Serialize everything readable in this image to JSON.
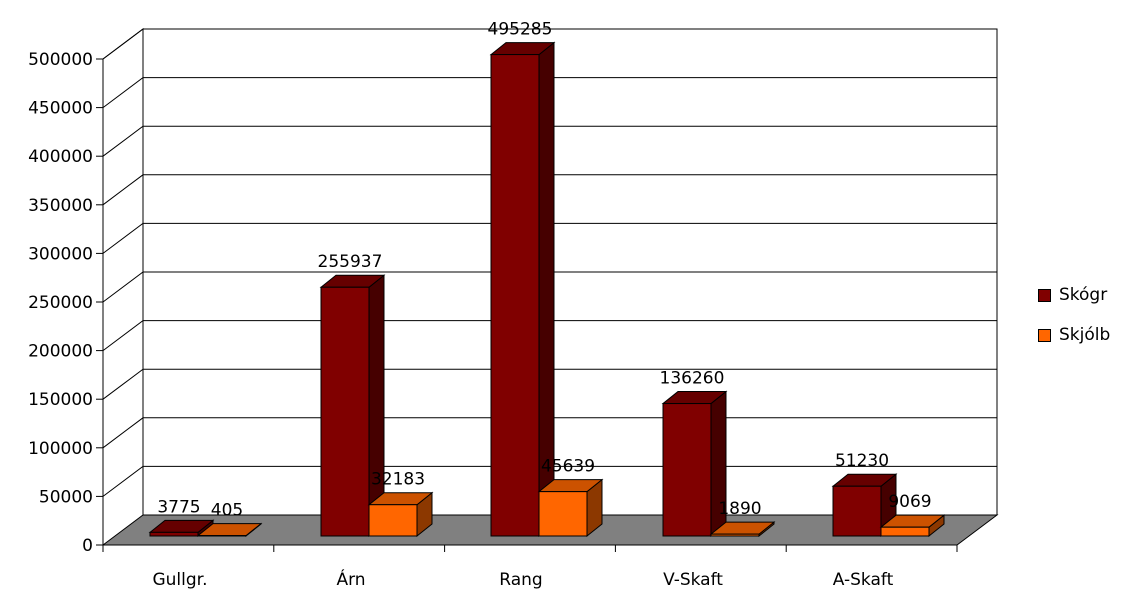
{
  "chart_data": {
    "type": "bar",
    "categories": [
      "Gullgr.",
      "Árn",
      "Rang",
      "V-Skaft",
      "A-Skaft"
    ],
    "series": [
      {
        "name": "Skógr",
        "color": "#800000",
        "values": [
          3775,
          255937,
          495285,
          136260,
          51230
        ]
      },
      {
        "name": "Skjólb",
        "color": "#ff6600",
        "values": [
          405,
          32183,
          45639,
          1890,
          9069
        ]
      }
    ],
    "ylim": [
      0,
      500000
    ],
    "yticks": [
      0,
      50000,
      100000,
      150000,
      200000,
      250000,
      300000,
      350000,
      400000,
      450000,
      500000
    ],
    "grid": true,
    "legend_position": "right",
    "style": "3d-clustered-column"
  }
}
